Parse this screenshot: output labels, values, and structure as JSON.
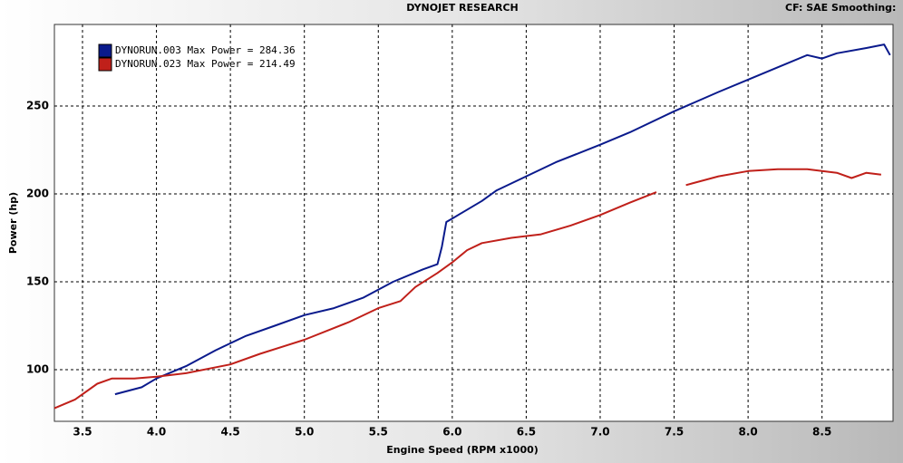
{
  "chart_data": {
    "type": "line",
    "title": "DYNOJET RESEARCH",
    "subtitle": "CF: SAE  Smoothing:",
    "x_label": "Engine Speed (RPM x1000)",
    "y_label": "Power (hp)",
    "xlim": [
      3.31,
      8.98
    ],
    "ylim": [
      70.6,
      296.4
    ],
    "xticks": [
      3.5,
      {
        "value": 4,
        "label": "4.0"
      },
      4.5,
      {
        "value": 5,
        "label": "5.0"
      },
      5.5,
      {
        "value": 6,
        "label": "6.0"
      },
      6.5,
      {
        "value": 7,
        "label": "7.0"
      },
      7.5,
      {
        "value": 8,
        "label": "8.0"
      },
      8.5
    ],
    "yticks": [
      100,
      150,
      200,
      250
    ],
    "grid": true,
    "legend": "top-left",
    "series": [
      {
        "name": "DYNORUN.003 Max Power = 284.36",
        "color": "#0a1a8c",
        "x": [
          3.72,
          3.9,
          4.0,
          4.2,
          4.4,
          4.6,
          4.8,
          5.0,
          5.2,
          5.4,
          5.6,
          5.8,
          5.9,
          5.93,
          5.96,
          6.0,
          6.2,
          6.3,
          6.5,
          6.7,
          7.0,
          7.2,
          7.5,
          7.8,
          8.0,
          8.2,
          8.4,
          8.5,
          8.6,
          8.8,
          8.92,
          8.96
        ],
        "values": [
          86,
          90,
          95,
          102,
          111,
          119,
          125,
          131,
          135,
          141,
          150,
          157,
          160,
          170,
          184,
          186,
          196,
          202,
          210,
          218,
          228,
          235,
          247,
          258,
          265,
          272,
          279,
          277,
          280,
          283,
          285,
          279
        ]
      },
      {
        "name": "DYNORUN.023 Max Power = 214.49",
        "color": "#c0201a",
        "x": [
          3.31,
          3.45,
          3.6,
          3.7,
          3.85,
          4.0,
          4.2,
          4.5,
          4.7,
          5.0,
          5.3,
          5.5,
          5.65,
          5.75,
          5.9,
          6.0,
          6.1,
          6.2,
          6.4,
          6.6,
          6.8,
          7.0,
          7.2,
          7.38,
          7.48,
          7.58,
          7.8,
          8.0,
          8.2,
          8.4,
          8.6,
          8.7,
          8.8,
          8.9
        ],
        "values": [
          78,
          83,
          92,
          95,
          95,
          96,
          98,
          103,
          109,
          117,
          127,
          135,
          139,
          147,
          155,
          161,
          168,
          172,
          175,
          177,
          182,
          188,
          195,
          201,
          null,
          205,
          210,
          213,
          214,
          214,
          212,
          209,
          212,
          211
        ]
      }
    ]
  }
}
